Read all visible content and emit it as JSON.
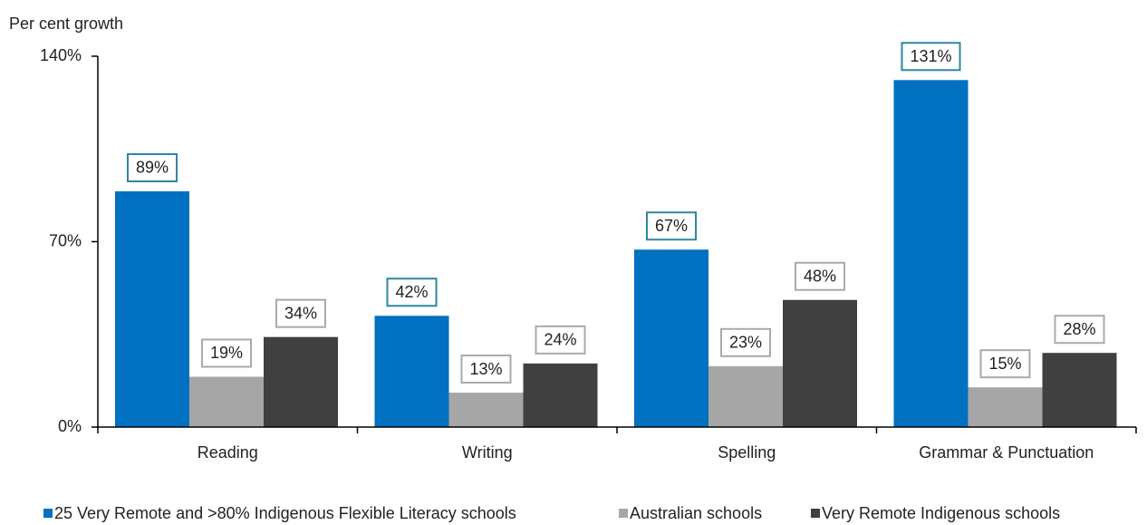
{
  "chart_data": {
    "type": "bar",
    "y_axis_label": "Per cent growth",
    "categories": [
      "Reading",
      "Writing",
      "Spelling",
      "Grammar & Punctuation"
    ],
    "series": [
      {
        "name": "25 Very Remote and >80% Indigenous Flexible Literacy schools",
        "color": "#0070c0",
        "values": [
          89,
          42,
          67,
          131
        ],
        "value_labels": [
          "89%",
          "42%",
          "67%",
          "131%"
        ]
      },
      {
        "name": "Australian schools",
        "color": "#a6a6a6",
        "values": [
          19,
          13,
          23,
          15
        ],
        "value_labels": [
          "19%",
          "13%",
          "23%",
          "15%"
        ]
      },
      {
        "name": "Very Remote Indigenous schools",
        "color": "#404040",
        "values": [
          34,
          24,
          48,
          28
        ],
        "value_labels": [
          "34%",
          "24%",
          "48%",
          "28%"
        ]
      }
    ],
    "ylim": [
      0,
      140
    ],
    "yticks": [
      {
        "value": 0,
        "label": "0%"
      },
      {
        "value": 70,
        "label": "70%"
      },
      {
        "value": 140,
        "label": "140%"
      }
    ],
    "legend": "bottom"
  }
}
